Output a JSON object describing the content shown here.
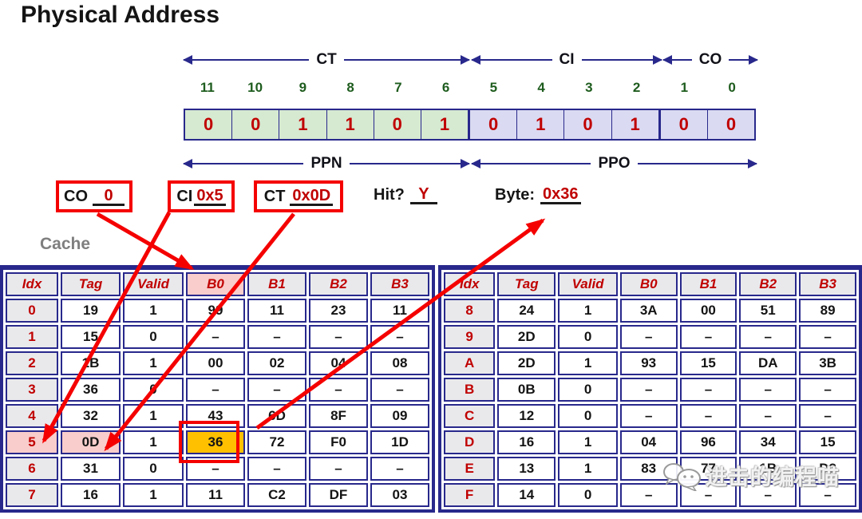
{
  "title": "Physical Address",
  "bit_diagram": {
    "field_labels": {
      "ct": "CT",
      "ci": "CI",
      "co": "CO"
    },
    "bit_numbers": [
      "11",
      "10",
      "9",
      "8",
      "7",
      "6",
      "5",
      "4",
      "3",
      "2",
      "1",
      "0"
    ],
    "bit_values": [
      "0",
      "0",
      "1",
      "1",
      "0",
      "1",
      "0",
      "1",
      "0",
      "1",
      "0",
      "0"
    ],
    "part_labels": {
      "ppn": "PPN",
      "ppo": "PPO"
    }
  },
  "answers": {
    "co": {
      "label": "CO",
      "value": "0"
    },
    "ci": {
      "label": "CI",
      "value": "0x5"
    },
    "ct": {
      "label": "CT",
      "value": "0x0D"
    },
    "hit": {
      "label": "Hit?",
      "value": "Y"
    },
    "byte": {
      "label": "Byte:",
      "value": "0x36"
    }
  },
  "cache": {
    "label": "Cache",
    "headers": [
      "Idx",
      "Tag",
      "Valid",
      "B0",
      "B1",
      "B2",
      "B3"
    ],
    "left_table": {
      "header_pink_cols": [
        3
      ],
      "rows": [
        {
          "cells": [
            "0",
            "19",
            "1",
            "99",
            "11",
            "23",
            "11"
          ]
        },
        {
          "cells": [
            "1",
            "15",
            "0",
            "–",
            "–",
            "–",
            "–"
          ]
        },
        {
          "cells": [
            "2",
            "1B",
            "1",
            "00",
            "02",
            "04",
            "08"
          ]
        },
        {
          "cells": [
            "3",
            "36",
            "0",
            "–",
            "–",
            "–",
            "–"
          ]
        },
        {
          "cells": [
            "4",
            "32",
            "1",
            "43",
            "6D",
            "8F",
            "09"
          ]
        },
        {
          "cells": [
            "5",
            "0D",
            "1",
            "36",
            "72",
            "F0",
            "1D"
          ],
          "pink": [
            0,
            1
          ],
          "orange": [
            3
          ]
        },
        {
          "cells": [
            "6",
            "31",
            "0",
            "–",
            "–",
            "–",
            "–"
          ]
        },
        {
          "cells": [
            "7",
            "16",
            "1",
            "11",
            "C2",
            "DF",
            "03"
          ]
        }
      ]
    },
    "right_table": {
      "header_pink_cols": [],
      "rows": [
        {
          "cells": [
            "8",
            "24",
            "1",
            "3A",
            "00",
            "51",
            "89"
          ]
        },
        {
          "cells": [
            "9",
            "2D",
            "0",
            "–",
            "–",
            "–",
            "–"
          ]
        },
        {
          "cells": [
            "A",
            "2D",
            "1",
            "93",
            "15",
            "DA",
            "3B"
          ]
        },
        {
          "cells": [
            "B",
            "0B",
            "0",
            "–",
            "–",
            "–",
            "–"
          ]
        },
        {
          "cells": [
            "C",
            "12",
            "0",
            "–",
            "–",
            "–",
            "–"
          ]
        },
        {
          "cells": [
            "D",
            "16",
            "1",
            "04",
            "96",
            "34",
            "15"
          ]
        },
        {
          "cells": [
            "E",
            "13",
            "1",
            "83",
            "77",
            "1B",
            "D3"
          ]
        },
        {
          "cells": [
            "F",
            "14",
            "0",
            "–",
            "–",
            "–",
            "–"
          ]
        }
      ]
    }
  },
  "watermark": {
    "text": "进击的编程喵"
  },
  "colors": {
    "navy": "#28288C",
    "arrow_red": "#F50000",
    "dark_red_text": "#C00000",
    "green_bit_numbers": "#1E5C1E",
    "green_cell_bg": "#D6E9D1",
    "lavender_cell_bg": "#DADAF2",
    "header_bg": "#E9E9EC",
    "pink_highlight": "#F8CDCB",
    "orange_highlight": "#FFC000"
  }
}
